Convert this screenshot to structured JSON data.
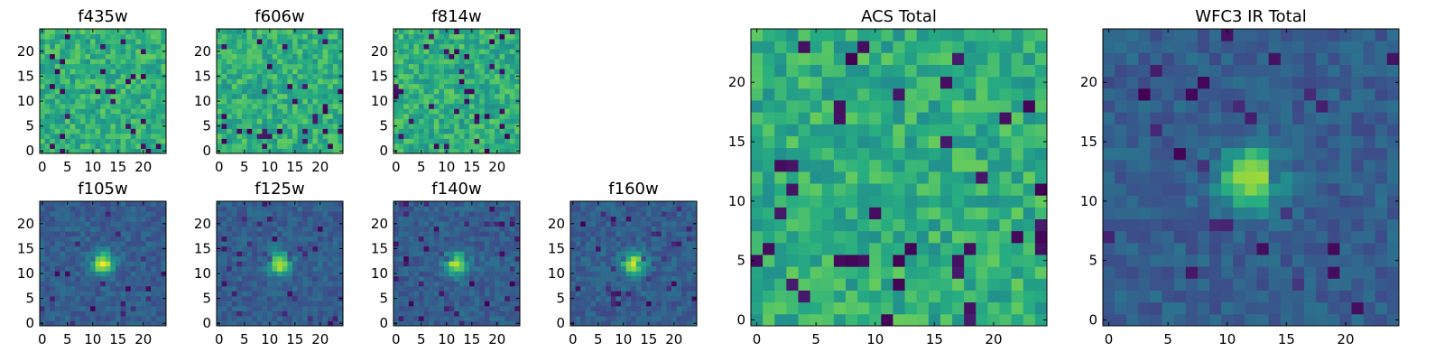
{
  "chart_data": [
    {
      "type": "heatmap",
      "title": "f435w",
      "xticks": [
        0,
        5,
        10,
        15,
        20
      ],
      "yticks": [
        0,
        5,
        10,
        15,
        20
      ],
      "xlim": [
        -0.5,
        24.5
      ],
      "ylim": [
        -0.5,
        24.5
      ],
      "grid": false,
      "colormap": "viridis",
      "pattern": "noise"
    },
    {
      "type": "heatmap",
      "title": "f606w",
      "xticks": [
        0,
        5,
        10,
        15,
        20
      ],
      "yticks": [
        0,
        5,
        10,
        15,
        20
      ],
      "xlim": [
        -0.5,
        24.5
      ],
      "ylim": [
        -0.5,
        24.5
      ],
      "grid": false,
      "colormap": "viridis",
      "pattern": "noise"
    },
    {
      "type": "heatmap",
      "title": "f814w",
      "xticks": [
        0,
        5,
        10,
        15,
        20
      ],
      "yticks": [
        0,
        5,
        10,
        15,
        20
      ],
      "xlim": [
        -0.5,
        24.5
      ],
      "ylim": [
        -0.5,
        24.5
      ],
      "grid": false,
      "colormap": "viridis",
      "pattern": "noise"
    },
    {
      "type": "heatmap",
      "title": "f105w",
      "xticks": [
        0,
        5,
        10,
        15,
        20
      ],
      "yticks": [
        0,
        5,
        10,
        15,
        20
      ],
      "xlim": [
        -0.5,
        24.5
      ],
      "ylim": [
        -0.5,
        24.5
      ],
      "grid": false,
      "colormap": "viridis",
      "pattern": "source",
      "source_center": [
        12,
        12
      ]
    },
    {
      "type": "heatmap",
      "title": "f125w",
      "xticks": [
        0,
        5,
        10,
        15,
        20
      ],
      "yticks": [
        0,
        5,
        10,
        15,
        20
      ],
      "xlim": [
        -0.5,
        24.5
      ],
      "ylim": [
        -0.5,
        24.5
      ],
      "grid": false,
      "colormap": "viridis",
      "pattern": "source",
      "source_center": [
        12,
        12
      ]
    },
    {
      "type": "heatmap",
      "title": "f140w",
      "xticks": [
        0,
        5,
        10,
        15,
        20
      ],
      "yticks": [
        0,
        5,
        10,
        15,
        20
      ],
      "xlim": [
        -0.5,
        24.5
      ],
      "ylim": [
        -0.5,
        24.5
      ],
      "grid": false,
      "colormap": "viridis",
      "pattern": "source",
      "source_center": [
        12,
        12
      ]
    },
    {
      "type": "heatmap",
      "title": "f160w",
      "xticks": [
        0,
        5,
        10,
        15,
        20
      ],
      "yticks": [
        0,
        5,
        10,
        15,
        20
      ],
      "xlim": [
        -0.5,
        24.5
      ],
      "ylim": [
        -0.5,
        24.5
      ],
      "grid": false,
      "colormap": "viridis",
      "pattern": "source",
      "source_center": [
        12,
        12
      ]
    },
    {
      "type": "heatmap",
      "title": "ACS Total",
      "xticks": [
        0,
        5,
        10,
        15,
        20
      ],
      "yticks": [
        0,
        5,
        10,
        15,
        20
      ],
      "xlim": [
        -0.5,
        24.5
      ],
      "ylim": [
        -0.5,
        24.5
      ],
      "grid": false,
      "colormap": "viridis",
      "pattern": "noise"
    },
    {
      "type": "heatmap",
      "title": "WFC3 IR Total",
      "xticks": [
        0,
        5,
        10,
        15,
        20
      ],
      "yticks": [
        0,
        5,
        10,
        15,
        20
      ],
      "xlim": [
        -0.5,
        24.5
      ],
      "ylim": [
        -0.5,
        24.5
      ],
      "grid": false,
      "colormap": "viridis",
      "pattern": "source",
      "source_center": [
        12,
        12
      ]
    }
  ],
  "colors": {
    "colormap_low": "#440154",
    "colormap_mid": "#21918c",
    "colormap_high": "#fde725",
    "axis": "#000000",
    "background": "#ffffff"
  }
}
